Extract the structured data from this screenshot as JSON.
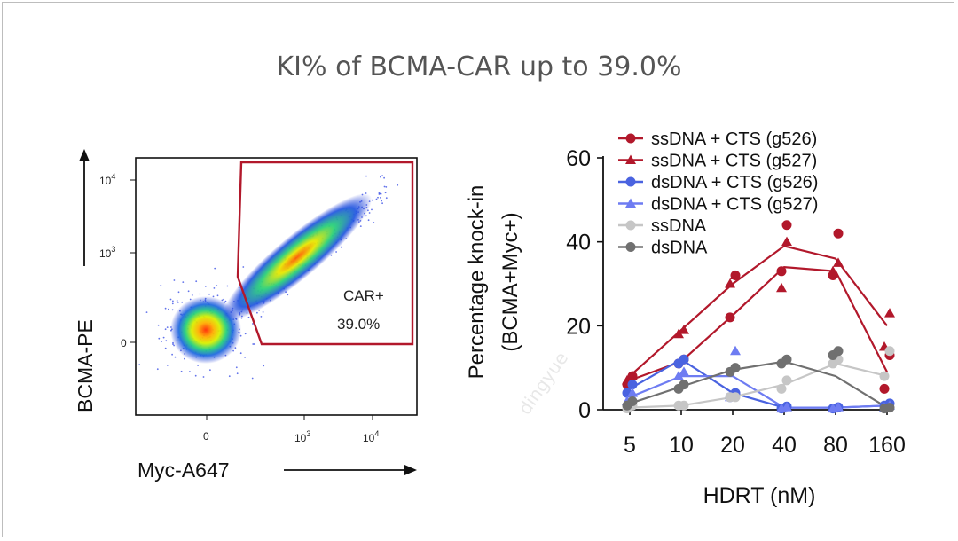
{
  "slide": {
    "title": "KI% of BCMA-CAR up to 39.0%",
    "watermark": "dingyue"
  },
  "chart_data": [
    {
      "type": "scatter",
      "title": "",
      "subtype": "flow-cytometry-density",
      "xlabel": "Myc-A647",
      "ylabel": "BCMA-PE",
      "x_ticks": [
        "0",
        "10^3",
        "10^4"
      ],
      "y_ticks": [
        "0",
        "10^3",
        "10^4"
      ],
      "gate": {
        "label": "CAR+",
        "percent": "39.0%"
      }
    },
    {
      "type": "line",
      "title": "",
      "xlabel": "HDRT (nM)",
      "ylabel_line1": "Percentage knock-in",
      "ylabel_line2": "(BCMA+Myc+)",
      "categories": [
        "5",
        "10",
        "20",
        "40",
        "80",
        "160"
      ],
      "ylim": [
        0,
        60
      ],
      "y_ticks": [
        0,
        20,
        40,
        60
      ],
      "series": [
        {
          "name": "ssDNA + CTS (g526)",
          "color": "#b2182b",
          "marker": "circle",
          "values": [
            7,
            11.5,
            22.5,
            34,
            33,
            9
          ],
          "points": [
            [
              6,
              8
            ],
            [
              11,
              12
            ],
            [
              22,
              32
            ],
            [
              33,
              44
            ],
            [
              32,
              42
            ],
            [
              5,
              13
            ]
          ]
        },
        {
          "name": "ssDNA + CTS (g527)",
          "color": "#b2182b",
          "marker": "triangle",
          "values": [
            8,
            19,
            30,
            39,
            36,
            20
          ],
          "points": [
            [
              7,
              8
            ],
            [
              18,
              19
            ],
            [
              30,
              32
            ],
            [
              29,
              40
            ],
            [
              33,
              35
            ],
            [
              15,
              23
            ]
          ]
        },
        {
          "name": "dsDNA + CTS (g526)",
          "color": "#4a63e0",
          "marker": "circle",
          "values": [
            5,
            12,
            4,
            0.5,
            0.5,
            1
          ],
          "points": [
            [
              4,
              6
            ],
            [
              11,
              12
            ],
            [
              3,
              4
            ],
            [
              0.3,
              0.8
            ],
            [
              0.3,
              0.6
            ],
            [
              1,
              1.5
            ]
          ]
        },
        {
          "name": "dsDNA + CTS (g527)",
          "color": "#6e7cf2",
          "marker": "triangle",
          "values": [
            3,
            8,
            8,
            0.5,
            0.5,
            1
          ],
          "points": [
            [
              2,
              4
            ],
            [
              8,
              9
            ],
            [
              3,
              14
            ],
            [
              0.3,
              0.6
            ],
            [
              0.3,
              0.6
            ],
            [
              0.5,
              1
            ]
          ]
        },
        {
          "name": "ssDNA",
          "color": "#c6c6c6",
          "marker": "circle",
          "values": [
            0.5,
            1,
            3,
            6,
            11,
            8
          ],
          "points": [
            [
              0.3,
              1
            ],
            [
              1,
              1
            ],
            [
              3,
              3
            ],
            [
              5,
              7
            ],
            [
              11,
              12
            ],
            [
              8,
              14
            ]
          ]
        },
        {
          "name": "dsDNA",
          "color": "#707070",
          "marker": "circle",
          "values": [
            1.5,
            5.5,
            9.5,
            11.5,
            8,
            0.5
          ],
          "points": [
            [
              1,
              2
            ],
            [
              5,
              6
            ],
            [
              9,
              10
            ],
            [
              11,
              12
            ],
            [
              13,
              14
            ],
            [
              0.3,
              0.5
            ]
          ]
        }
      ]
    }
  ]
}
